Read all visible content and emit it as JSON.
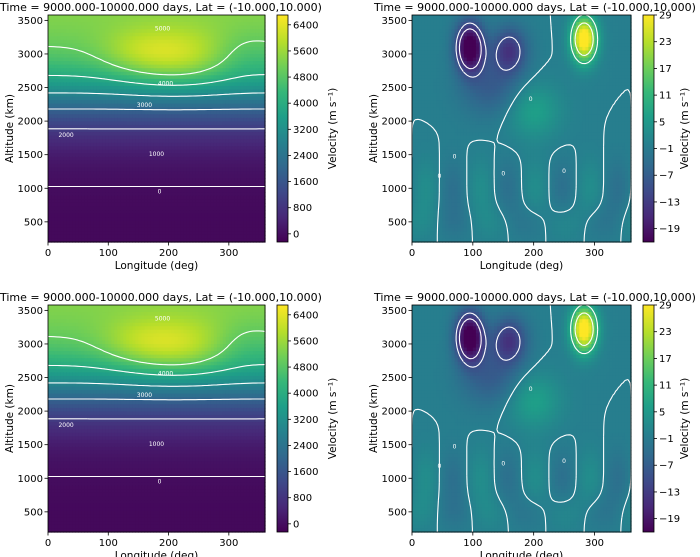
{
  "figure": "climate-model-cross-sections",
  "colors": {
    "viridis": [
      "#440154",
      "#482878",
      "#3e4989",
      "#31688e",
      "#26828e",
      "#1f9e89",
      "#35b779",
      "#6ece58",
      "#b5de2b",
      "#fde725"
    ]
  },
  "chart_data": [
    {
      "type": "heatmap",
      "id": "panel-top-left",
      "title": "Time = 9000.000-10000.000 days, Lat = (-10.000,10.000)",
      "xlabel": "Longitude (deg)",
      "ylabel": "Altitude (km)",
      "xlim": [
        0,
        360
      ],
      "ylim": [
        200,
        3580
      ],
      "xticks": [
        "0",
        "100",
        "200",
        "300"
      ],
      "xtick_values": [
        0,
        100,
        200,
        300
      ],
      "yticks": [
        "500",
        "1000",
        "1500",
        "2000",
        "2500",
        "3000",
        "3500"
      ],
      "ytick_values": [
        500,
        1000,
        1500,
        2000,
        2500,
        3000,
        3500
      ],
      "colorbar_label": "Velocity (m s⁻¹)",
      "colorbar_ticks": [
        "0",
        "800",
        "1600",
        "2400",
        "3200",
        "4000",
        "4800",
        "5600",
        "6400"
      ],
      "colorbar_range": [
        -250,
        6700
      ],
      "contour_labels": [
        "5000",
        "4000",
        "3000",
        "2000",
        "1000",
        "0"
      ],
      "peak": {
        "lon": 210,
        "alt": 2950,
        "value": 6700
      }
    },
    {
      "type": "heatmap",
      "id": "panel-top-right",
      "title": "Time = 9000.000-10000.000 days, Lat = (-10.000,10.000)",
      "xlabel": "Longitude (deg)",
      "ylabel": "Altitude (km)",
      "xlim": [
        0,
        360
      ],
      "ylim": [
        200,
        3580
      ],
      "xticks": [
        "0",
        "100",
        "200",
        "300"
      ],
      "xtick_values": [
        0,
        100,
        200,
        300
      ],
      "yticks": [
        "500",
        "1000",
        "1500",
        "2000",
        "2500",
        "3000",
        "3500"
      ],
      "ytick_values": [
        500,
        1000,
        1500,
        2000,
        2500,
        3000,
        3500
      ],
      "colorbar_label": "Velocity (m s⁻¹)",
      "colorbar_ticks": [
        "29",
        "23",
        "17",
        "11",
        "5",
        "−1",
        "−7",
        "−13",
        "−19"
      ],
      "colorbar_range": [
        -22,
        29
      ],
      "contour_labels": [
        "0",
        "0",
        "0",
        "0",
        "0"
      ],
      "positive_max": {
        "lon": 285,
        "alt": 3200,
        "value": 29
      },
      "negative_min": {
        "lon": 95,
        "alt": 3100,
        "value": -20
      }
    },
    {
      "type": "heatmap",
      "id": "panel-bottom-left",
      "title": "Time = 9000.000-10000.000 days, Lat = (-10.000,10.000)",
      "xlabel": "Longitude (deg)",
      "ylabel": "Altitude (km)",
      "xlim": [
        0,
        360
      ],
      "ylim": [
        200,
        3580
      ],
      "xticks": [
        "0",
        "100",
        "200",
        "300"
      ],
      "xtick_values": [
        0,
        100,
        200,
        300
      ],
      "yticks": [
        "500",
        "1000",
        "1500",
        "2000",
        "2500",
        "3000",
        "3500"
      ],
      "ytick_values": [
        500,
        1000,
        1500,
        2000,
        2500,
        3000,
        3500
      ],
      "colorbar_label": "Velocity (m s⁻¹)",
      "colorbar_ticks": [
        "0",
        "800",
        "1600",
        "2400",
        "3200",
        "4000",
        "4800",
        "5600",
        "6400"
      ],
      "colorbar_range": [
        -250,
        6700
      ],
      "contour_labels": [
        "5000",
        "4000",
        "3000",
        "2000",
        "1000",
        "0"
      ],
      "peak": {
        "lon": 215,
        "alt": 2950,
        "value": 6700
      }
    },
    {
      "type": "heatmap",
      "id": "panel-bottom-right",
      "title": "Time = 9000.000-10000.000 days, Lat = (-10.000,10.000)",
      "xlabel": "Longitude (deg)",
      "ylabel": "Altitude (km)",
      "xlim": [
        0,
        360
      ],
      "ylim": [
        200,
        3580
      ],
      "xticks": [
        "0",
        "100",
        "200",
        "300"
      ],
      "xtick_values": [
        0,
        100,
        200,
        300
      ],
      "yticks": [
        "500",
        "1000",
        "1500",
        "2000",
        "2500",
        "3000",
        "3500"
      ],
      "ytick_values": [
        500,
        1000,
        1500,
        2000,
        2500,
        3000,
        3500
      ],
      "colorbar_label": "Velocity (m s⁻¹)",
      "colorbar_ticks": [
        "29",
        "23",
        "17",
        "11",
        "5",
        "−1",
        "−7",
        "−13",
        "−19"
      ],
      "colorbar_range": [
        -22,
        29
      ],
      "contour_labels": [
        "0",
        "0",
        "0",
        "0",
        "0"
      ],
      "positive_max": {
        "lon": 285,
        "alt": 3200,
        "value": 29
      },
      "negative_min": {
        "lon": 95,
        "alt": 3100,
        "value": -20
      }
    }
  ]
}
